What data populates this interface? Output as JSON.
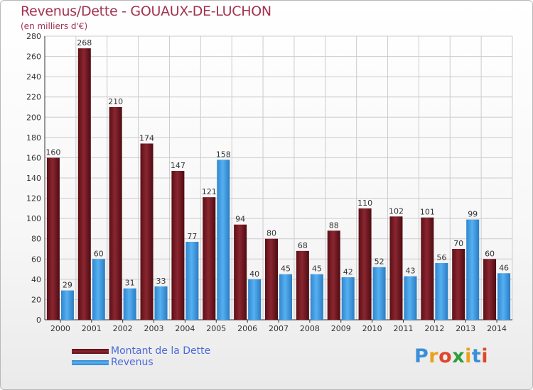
{
  "title": "Revenus/Dette - GOUAUX-DE-LUCHON",
  "subtitle": "(en milliers d'€)",
  "logo_text": "Proxiti",
  "colors": {
    "dette": "#7a1e26",
    "revenus": "#3f9de3",
    "title": "#a23252",
    "legend_text": "#4b6ad9",
    "grid": "#cccccc"
  },
  "chart_data": {
    "type": "bar",
    "title": "Revenus/Dette - GOUAUX-DE-LUCHON",
    "subtitle": "(en milliers d'€)",
    "categories": [
      "2000",
      "2001",
      "2002",
      "2003",
      "2004",
      "2005",
      "2006",
      "2007",
      "2008",
      "2009",
      "2010",
      "2011",
      "2012",
      "2013",
      "2014"
    ],
    "series": [
      {
        "name": "Montant de la Dette",
        "values": [
          160,
          268,
          210,
          174,
          147,
          121,
          94,
          80,
          68,
          88,
          110,
          102,
          101,
          70,
          60
        ]
      },
      {
        "name": "Revenus",
        "values": [
          29,
          60,
          31,
          33,
          77,
          158,
          40,
          45,
          45,
          42,
          52,
          43,
          56,
          99,
          46
        ]
      }
    ],
    "ylim": [
      0,
      280
    ],
    "yticks": [
      0,
      20,
      40,
      60,
      80,
      100,
      120,
      140,
      160,
      180,
      200,
      220,
      240,
      260,
      280
    ],
    "grid": true,
    "legend_position": "bottom-left"
  }
}
